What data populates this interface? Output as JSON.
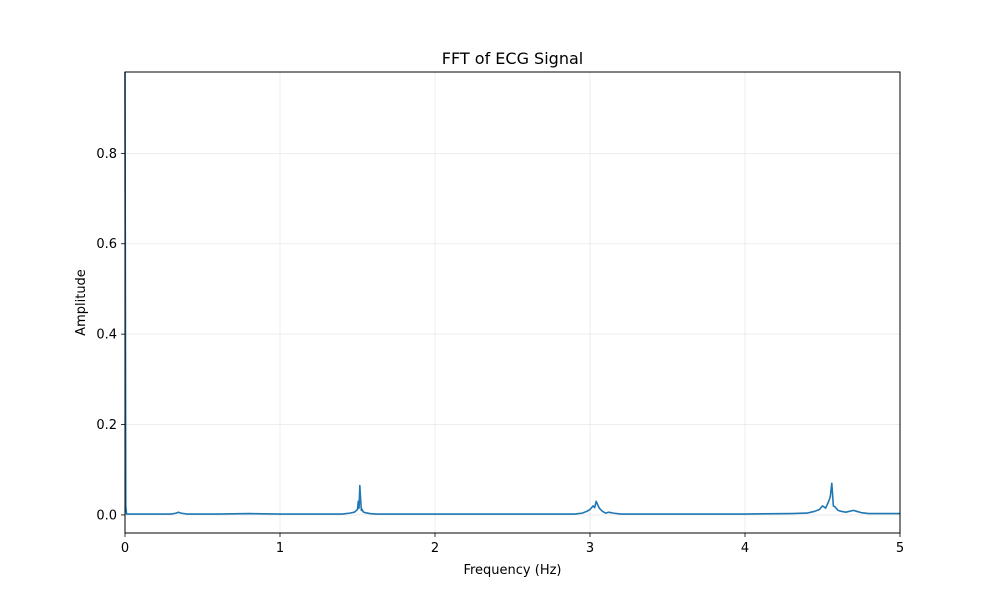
{
  "chart_data": {
    "type": "line",
    "title": "FFT of ECG Signal",
    "xlabel": "Frequency (Hz)",
    "ylabel": "Amplitude",
    "xlim": [
      0,
      5
    ],
    "ylim": [
      -0.04,
      0.98
    ],
    "x_ticks": [
      0,
      1,
      2,
      3,
      4,
      5
    ],
    "x_tick_labels": [
      "0",
      "1",
      "2",
      "3",
      "4",
      "5"
    ],
    "y_ticks": [
      0.0,
      0.2,
      0.4,
      0.6,
      0.8
    ],
    "y_tick_labels": [
      "0.0",
      "0.2",
      "0.4",
      "0.6",
      "0.8"
    ],
    "grid": true,
    "series": [
      {
        "color": "#1f77b4",
        "x": [
          0.0,
          0.005,
          0.01,
          0.1,
          0.2,
          0.3,
          0.33,
          0.345,
          0.36,
          0.4,
          0.6,
          0.8,
          1.0,
          1.2,
          1.4,
          1.45,
          1.48,
          1.5,
          1.505,
          1.51,
          1.515,
          1.52,
          1.525,
          1.53,
          1.535,
          1.54,
          1.55,
          1.58,
          1.62,
          1.7,
          2.0,
          2.5,
          2.9,
          2.95,
          2.98,
          3.0,
          3.02,
          3.03,
          3.04,
          3.05,
          3.06,
          3.08,
          3.1,
          3.12,
          3.15,
          3.2,
          3.5,
          4.0,
          4.3,
          4.4,
          4.45,
          4.48,
          4.5,
          4.52,
          4.54,
          4.55,
          4.56,
          4.565,
          4.57,
          4.58,
          4.6,
          4.62,
          4.65,
          4.7,
          4.72,
          4.75,
          4.8,
          5.0
        ],
        "y": [
          0.98,
          0.02,
          0.002,
          0.002,
          0.002,
          0.002,
          0.004,
          0.006,
          0.004,
          0.002,
          0.002,
          0.003,
          0.002,
          0.002,
          0.002,
          0.004,
          0.006,
          0.012,
          0.03,
          0.015,
          0.065,
          0.035,
          0.01,
          0.012,
          0.008,
          0.006,
          0.005,
          0.003,
          0.002,
          0.002,
          0.002,
          0.002,
          0.002,
          0.004,
          0.008,
          0.012,
          0.02,
          0.016,
          0.03,
          0.022,
          0.015,
          0.008,
          0.004,
          0.006,
          0.004,
          0.002,
          0.002,
          0.002,
          0.003,
          0.004,
          0.008,
          0.012,
          0.02,
          0.015,
          0.03,
          0.04,
          0.07,
          0.045,
          0.02,
          0.018,
          0.01,
          0.008,
          0.006,
          0.01,
          0.008,
          0.005,
          0.003,
          0.003
        ]
      }
    ]
  }
}
